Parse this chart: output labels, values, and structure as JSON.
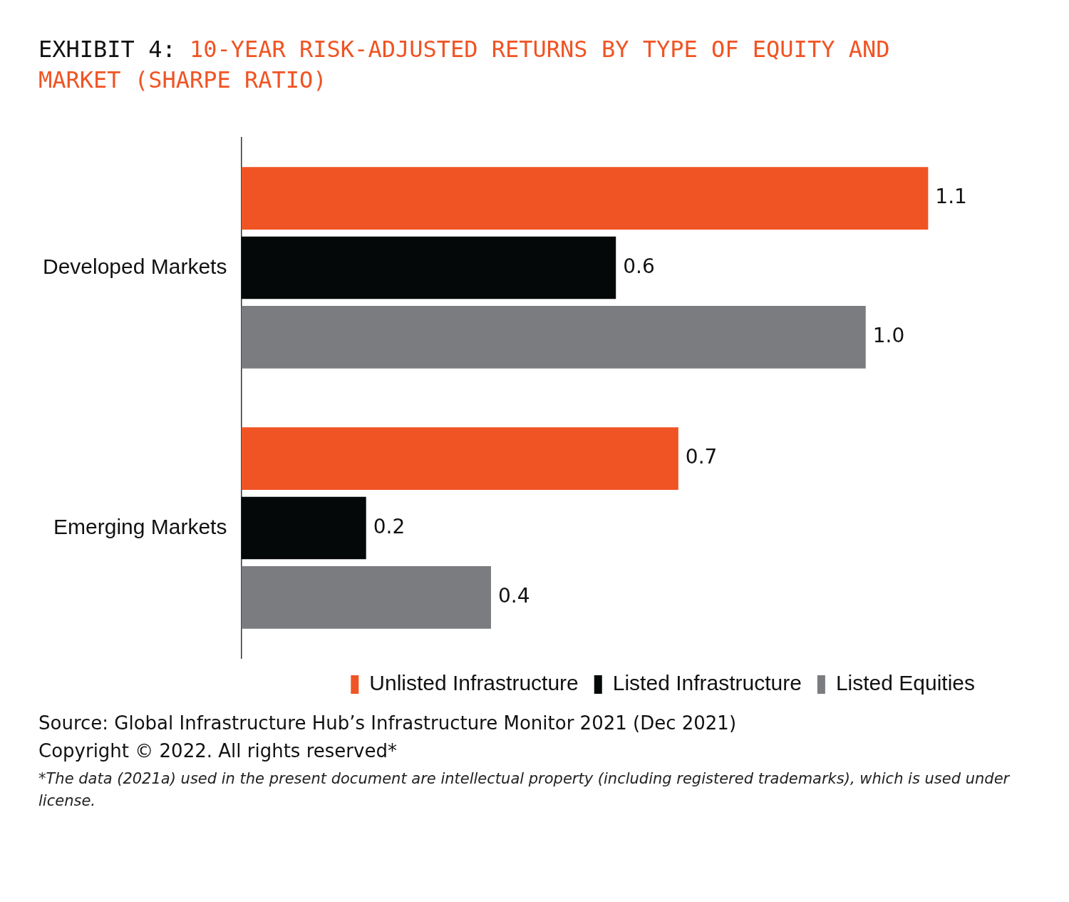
{
  "chart_data": {
    "type": "bar",
    "orientation": "horizontal",
    "title": "EXHIBIT 4: 10-YEAR RISK-ADJUSTED RETURNS BY TYPE OF EQUITY AND MARKET (SHARPE RATIO)",
    "categories": [
      "Developed Markets",
      "Emerging Markets"
    ],
    "series": [
      {
        "name": "Unlisted Infrastructure",
        "color": "#f05424",
        "values": [
          1.1,
          0.7
        ],
        "value_labels": [
          "1.1",
          "0.7"
        ]
      },
      {
        "name": "Listed Infrastructure",
        "color": "#050808",
        "values": [
          0.6,
          0.2
        ],
        "value_labels": [
          "0.6",
          "0.2"
        ]
      },
      {
        "name": "Listed Equities",
        "color": "#7a7c80",
        "values": [
          1.0,
          0.4
        ],
        "value_labels": [
          "1.0",
          "0.4"
        ]
      }
    ],
    "grid": false,
    "legend": "bottom",
    "tick_labels": "y",
    "annotations": [
      "Source: Global Infrastructure Hub’s Infrastructure Monitor 2021 (Dec 2021)",
      "Copyright © 2022. All rights reserved*",
      "*The data (2021a) used in the present document are intellectual property (including registered trademarks), which is used under license."
    ]
  }
}
